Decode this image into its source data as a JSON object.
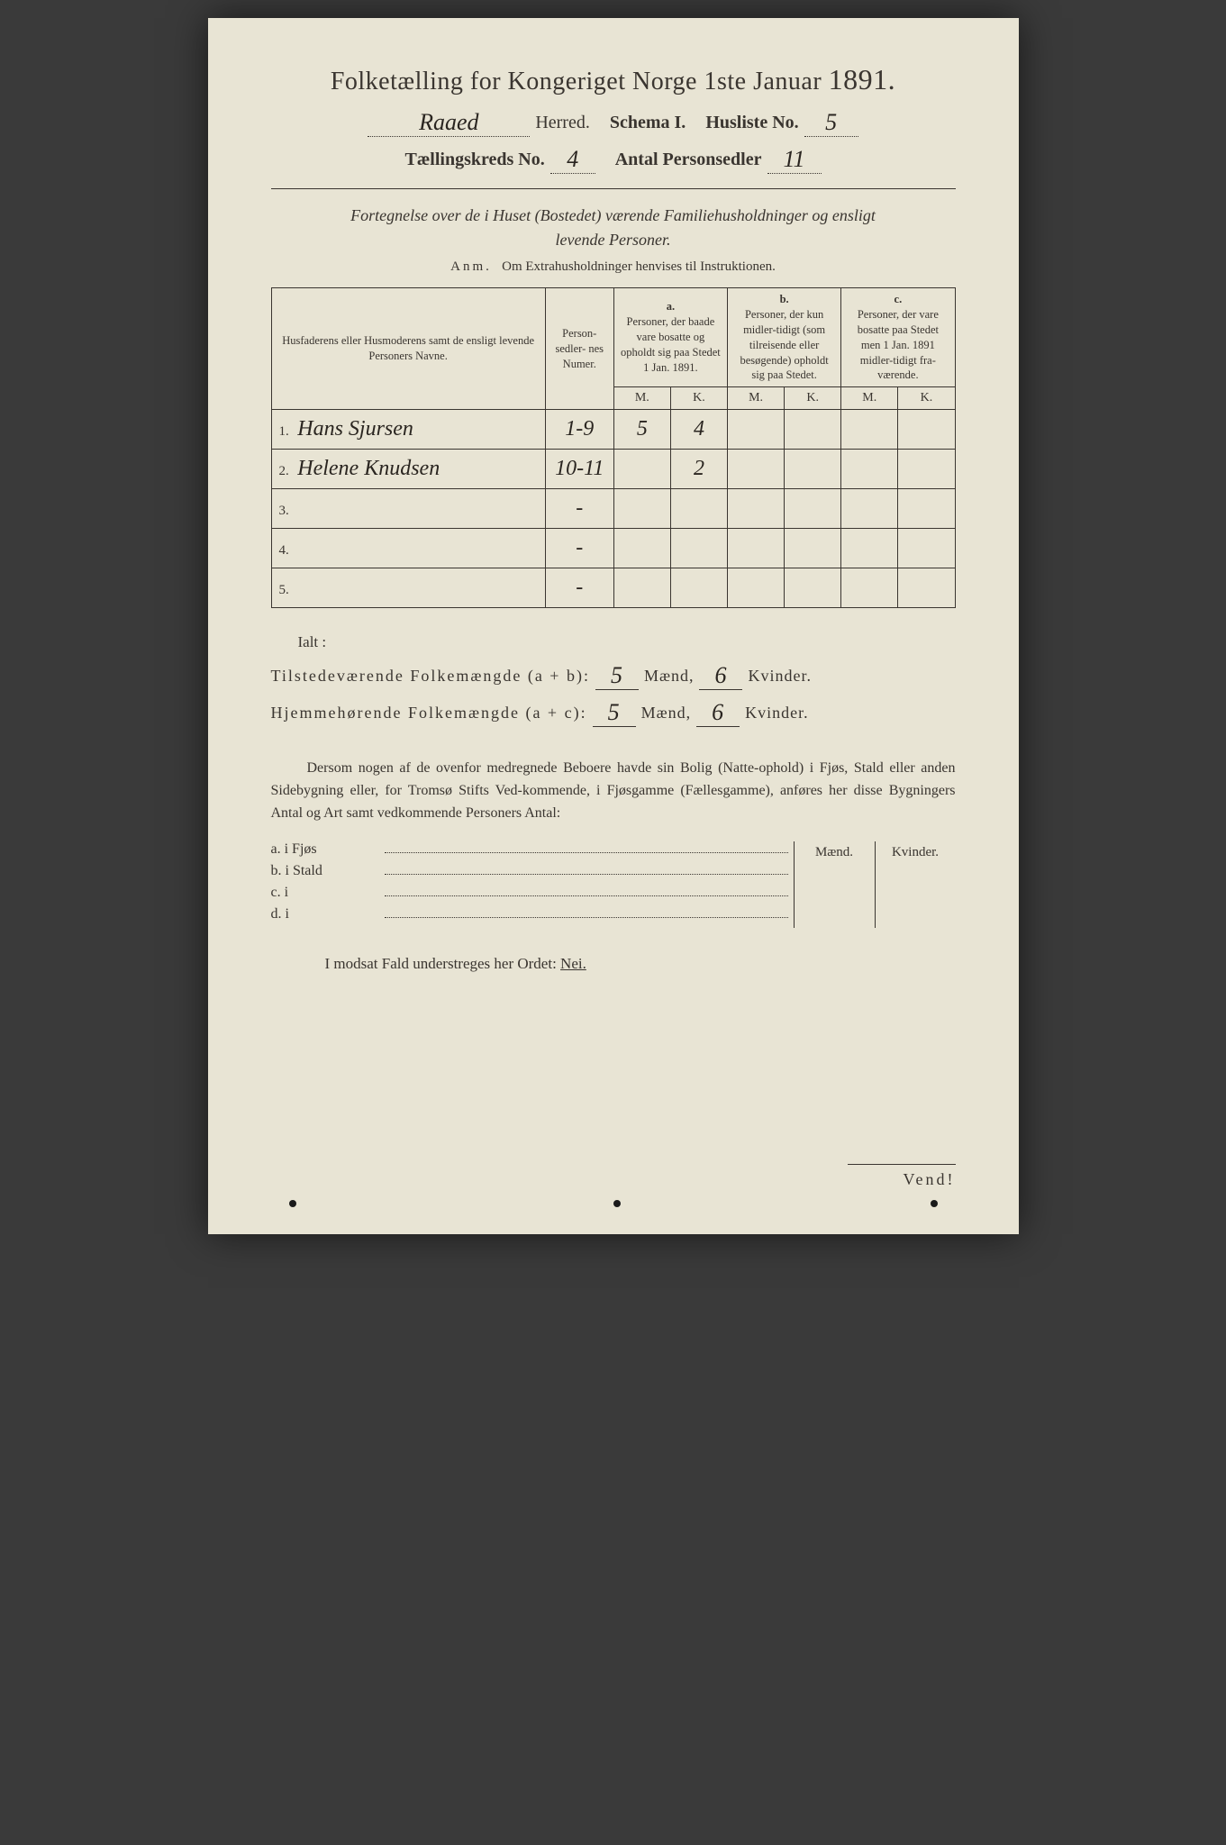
{
  "colors": {
    "paper": "#e8e4d4",
    "ink": "#3a3530",
    "handwriting": "#2a2520",
    "background": "#3a3a3a"
  },
  "header": {
    "title_prefix": "Folketælling for Kongeriget Norge 1ste Januar",
    "year": "1891.",
    "herred_value": "Raaed",
    "herred_label": "Herred.",
    "schema_label": "Schema I.",
    "husliste_label": "Husliste No.",
    "husliste_value": "5",
    "kreds_label": "Tællingskreds No.",
    "kreds_value": "4",
    "antal_label": "Antal Personsedler",
    "antal_value": "11"
  },
  "description": {
    "italic_line1": "Fortegnelse over de i Huset (Bostedet) værende Familiehusholdninger og ensligt",
    "italic_line2": "levende Personer.",
    "anm_label": "Anm.",
    "anm_text": "Om Extrahusholdninger henvises til Instruktionen."
  },
  "table": {
    "col_names": "Husfaderens eller Husmoderens samt de ensligt levende Personers Navne.",
    "col_num": "Person-\nsedler-\nnes\nNumer.",
    "group_a_letter": "a.",
    "group_a_text": "Personer, der baade vare bosatte og opholdt sig paa Stedet 1 Jan. 1891.",
    "group_b_letter": "b.",
    "group_b_text": "Personer, der kun midler-tidigt (som tilreisende eller besøgende) opholdt sig paa Stedet.",
    "group_c_letter": "c.",
    "group_c_text": "Personer, der vare bosatte paa Stedet men 1 Jan. 1891 midler-tidigt fra-værende.",
    "m_label": "M.",
    "k_label": "K.",
    "rows": [
      {
        "idx": "1.",
        "name": "Hans Sjursen",
        "num": "1-9",
        "a_m": "5",
        "a_k": "4",
        "b_m": "",
        "b_k": "",
        "c_m": "",
        "c_k": ""
      },
      {
        "idx": "2.",
        "name": "Helene Knudsen",
        "num": "10-11",
        "a_m": "",
        "a_k": "2",
        "b_m": "",
        "b_k": "",
        "c_m": "",
        "c_k": ""
      },
      {
        "idx": "3.",
        "name": "",
        "num": "-",
        "a_m": "",
        "a_k": "",
        "b_m": "",
        "b_k": "",
        "c_m": "",
        "c_k": ""
      },
      {
        "idx": "4.",
        "name": "",
        "num": "-",
        "a_m": "",
        "a_k": "",
        "b_m": "",
        "b_k": "",
        "c_m": "",
        "c_k": ""
      },
      {
        "idx": "5.",
        "name": "",
        "num": "-",
        "a_m": "",
        "a_k": "",
        "b_m": "",
        "b_k": "",
        "c_m": "",
        "c_k": ""
      }
    ]
  },
  "totals": {
    "ialt_label": "Ialt :",
    "line1_label": "Tilstedeværende Folkemængde (a + b):",
    "line2_label": "Hjemmehørende Folkemængde (a + c):",
    "maend_label": "Mænd,",
    "kvinder_label": "Kvinder.",
    "ab_m": "5",
    "ab_k": "6",
    "ac_m": "5",
    "ac_k": "6"
  },
  "paragraph": {
    "text": "Dersom nogen af de ovenfor medregnede Beboere havde sin Bolig (Natte-ophold) i Fjøs, Stald eller anden Sidebygning eller, for Tromsø Stifts Ved-kommende, i Fjøsgamme (Fællesgamme), anføres her disse Bygningers Antal og Art samt vedkommende Personers Antal:"
  },
  "side": {
    "m_label": "Mænd.",
    "k_label": "Kvinder.",
    "rows": [
      {
        "lead": "a.  i      Fjøs"
      },
      {
        "lead": "b.  i      Stald"
      },
      {
        "lead": "c.  i"
      },
      {
        "lead": "d.  i"
      }
    ]
  },
  "nei": {
    "prefix": "I modsat Fald understreges her Ordet:",
    "word": "Nei."
  },
  "vend": "Vend!"
}
